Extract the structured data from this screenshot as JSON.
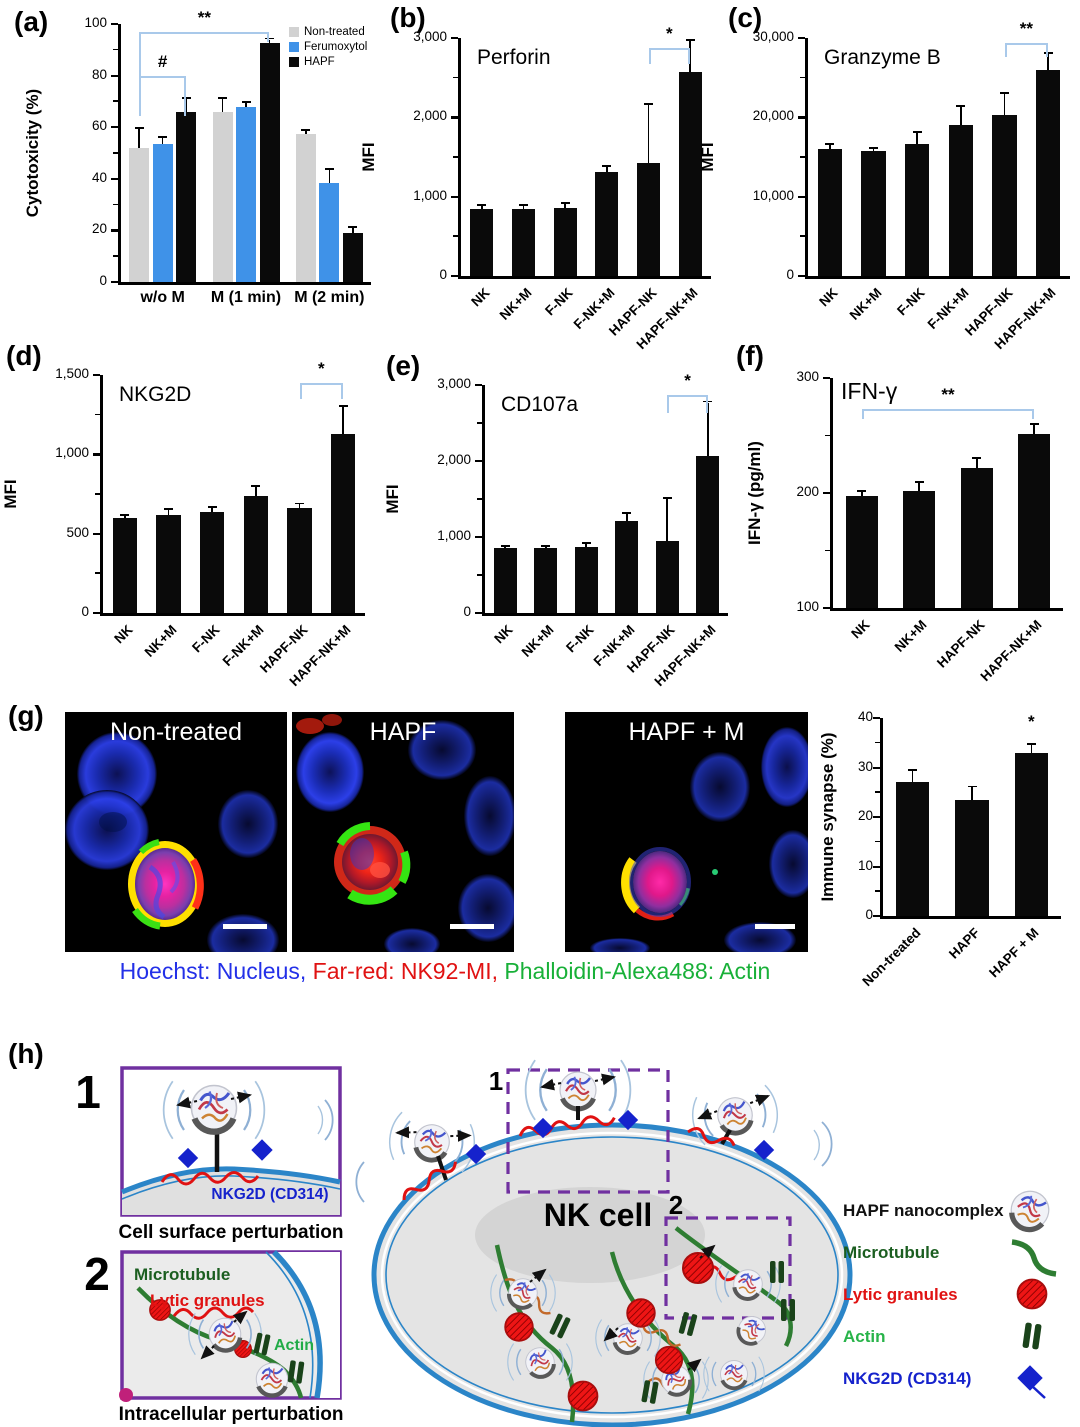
{
  "panels": {
    "a": {
      "label": "(a)"
    },
    "b": {
      "label": "(b)"
    },
    "c": {
      "label": "(c)"
    },
    "d": {
      "label": "(d)"
    },
    "e": {
      "label": "(e)"
    },
    "f": {
      "label": "(f)"
    },
    "g": {
      "label": "(g)",
      "images": [
        {
          "title": "Non-treated"
        },
        {
          "title": "HAPF"
        },
        {
          "title": "HAPF + M"
        }
      ],
      "caption": {
        "part1": "Hoechst: Nucleus,",
        "part2": "Far-red: NK92-MI,",
        "part3": "Phalloidin-Alexa488: Actin"
      }
    },
    "h": {
      "label": "(h)",
      "box1": {
        "number": "1",
        "inner_label": "NKG2D (CD314)",
        "caption": "Cell surface perturbation"
      },
      "box2": {
        "number": "2",
        "microtubule_label": "Microtubule",
        "lytic_label": "Lytic granules",
        "actin_label": "Actin",
        "caption": "Intracellular perturbation"
      },
      "cell": {
        "title": "NK cell",
        "zoom1_label": "1",
        "zoom2_label": "2"
      },
      "legend": [
        {
          "label": "HAPF nanocomplex",
          "color": "#111111",
          "icon": "nanocomplex-icon"
        },
        {
          "label": "Microtubule",
          "color": "#1b5e20",
          "icon": "microtubule-icon"
        },
        {
          "label": "Lytic granules",
          "color": "#e01212",
          "icon": "lytic-granule-icon"
        },
        {
          "label": "Actin",
          "color": "#28b44a",
          "icon": "actin-icon"
        },
        {
          "label": "NKG2D (CD314)",
          "color": "#1522cc",
          "icon": "nkg2d-icon"
        }
      ]
    }
  },
  "chart_data": {
    "a": {
      "type": "bar",
      "title": "",
      "ylabel": "Cytotoxicity (%)",
      "ylim": [
        0,
        100
      ],
      "yticks": [
        {
          "v": 0,
          "t": "0"
        },
        {
          "v": 20,
          "t": "20"
        },
        {
          "v": 40,
          "t": "40"
        },
        {
          "v": 60,
          "t": "60"
        },
        {
          "v": 80,
          "t": "80"
        },
        {
          "v": 100,
          "t": "100"
        }
      ],
      "categories": [
        "w/o M",
        "M (1 min)",
        "M (2 min)"
      ],
      "series": [
        {
          "name": "Non-treated",
          "color": "#d2d2d2",
          "values": [
            52,
            66,
            57.5
          ],
          "errors": [
            7.5,
            5,
            1
          ]
        },
        {
          "name": "Ferumoxytol",
          "color": "#3f92e8",
          "values": [
            53.5,
            68,
            38.5
          ],
          "errors": [
            2.5,
            1.5,
            5
          ]
        },
        {
          "name": "HAPF",
          "color": "#0a0a0a",
          "values": [
            66,
            92.5,
            19
          ],
          "errors": [
            5,
            1.5,
            2
          ]
        }
      ],
      "legend_position": "top-right",
      "sig": [
        {
          "from": 0,
          "to": 2,
          "y": 80,
          "ll": 40,
          "lr": 40,
          "label": "#"
        },
        {
          "from": 0,
          "to": 5,
          "y": 97,
          "ll": 44,
          "lr": 10,
          "label": "**"
        }
      ]
    },
    "b": {
      "type": "bar",
      "title": "Perforin",
      "ylabel": "MFI",
      "ylim": [
        0,
        3000
      ],
      "yticks": [
        {
          "v": 0,
          "t": "0"
        },
        {
          "v": 1000,
          "t": "1,000"
        },
        {
          "v": 2000,
          "t": "2,000"
        },
        {
          "v": 3000,
          "t": "3,000"
        }
      ],
      "categories": [
        "NK",
        "NK+M",
        "F-NK",
        "F-NK+M",
        "HAPF-NK",
        "HAPF-NK+M"
      ],
      "values": [
        850,
        850,
        860,
        1310,
        1430,
        2570
      ],
      "errors": [
        30,
        30,
        50,
        70,
        730,
        390
      ],
      "bar_color": "#0a0a0a",
      "sig": [
        {
          "from": 4,
          "to": 5,
          "y": 2880,
          "ll": 16,
          "lr": 16,
          "label": "*"
        }
      ]
    },
    "c": {
      "type": "bar",
      "title": "Granzyme B",
      "ylabel": "MFI",
      "ylim": [
        0,
        30000
      ],
      "yticks": [
        {
          "v": 0,
          "t": "0"
        },
        {
          "v": 10000,
          "t": "10,000"
        },
        {
          "v": 20000,
          "t": "20,000"
        },
        {
          "v": 30000,
          "t": "30,000"
        }
      ],
      "categories": [
        "NK",
        "NK+M",
        "F-NK",
        "F-NK+M",
        "HAPF-NK",
        "HAPF-NK+M"
      ],
      "values": [
        16000,
        15700,
        16700,
        19000,
        20300,
        26000
      ],
      "errors": [
        500,
        300,
        1300,
        2300,
        2700,
        2000
      ],
      "bar_color": "#0a0a0a",
      "sig": [
        {
          "from": 4,
          "to": 5,
          "y": 29400,
          "ll": 14,
          "lr": 14,
          "label": "**"
        }
      ]
    },
    "d": {
      "type": "bar",
      "title": "NKG2D",
      "ylabel": "MFI",
      "ylim": [
        0,
        1500
      ],
      "yticks": [
        {
          "v": 0,
          "t": "0"
        },
        {
          "v": 500,
          "t": "500"
        },
        {
          "v": 1000,
          "t": "1,000"
        },
        {
          "v": 1500,
          "t": "1,500"
        }
      ],
      "categories": [
        "NK",
        "NK+M",
        "F-NK",
        "F-NK+M",
        "HAPF-NK",
        "HAPF-NK+M"
      ],
      "values": [
        600,
        615,
        635,
        735,
        665,
        1130
      ],
      "errors": [
        10,
        35,
        25,
        60,
        20,
        170
      ],
      "bar_color": "#0a0a0a",
      "sig": [
        {
          "from": 4,
          "to": 5,
          "y": 1450,
          "ll": 16,
          "lr": 16,
          "label": "*"
        }
      ]
    },
    "e": {
      "type": "bar",
      "title": "CD107a",
      "ylabel": "MFI",
      "ylim": [
        0,
        3000
      ],
      "yticks": [
        {
          "v": 0,
          "t": "0"
        },
        {
          "v": 1000,
          "t": "1,000"
        },
        {
          "v": 2000,
          "t": "2,000"
        },
        {
          "v": 3000,
          "t": "3,000"
        }
      ],
      "categories": [
        "NK",
        "NK+M",
        "F-NK",
        "F-NK+M",
        "HAPF-NK",
        "HAPF-NK+M"
      ],
      "values": [
        850,
        850,
        870,
        1210,
        950,
        2070
      ],
      "errors": [
        25,
        25,
        40,
        90,
        550,
        700
      ],
      "bar_color": "#0a0a0a",
      "sig": [
        {
          "from": 4,
          "to": 5,
          "y": 2870,
          "ll": 18,
          "lr": 18,
          "label": "*"
        }
      ]
    },
    "f": {
      "type": "bar",
      "title": "IFN-γ",
      "ylabel": "IFN-γ  (pg/ml)",
      "ylim": [
        100,
        300
      ],
      "yticks": [
        {
          "v": 100,
          "t": "100"
        },
        {
          "v": 200,
          "t": "200"
        },
        {
          "v": 300,
          "t": "300"
        }
      ],
      "categories": [
        "NK",
        "NK+M",
        "HAPF-NK",
        "HAPF-NK+M"
      ],
      "values": [
        197,
        202,
        222,
        251
      ],
      "errors": [
        4,
        7,
        8,
        8
      ],
      "bar_color": "#0a0a0a",
      "sig": [
        {
          "from": 0,
          "to": 3,
          "y": 273,
          "ll": 10,
          "lr": 10,
          "label": "**"
        }
      ]
    },
    "g": {
      "type": "bar",
      "title": "",
      "ylabel": "Immune synapse (%)",
      "ylim": [
        0,
        40
      ],
      "yticks": [
        {
          "v": 0,
          "t": "0"
        },
        {
          "v": 10,
          "t": "10"
        },
        {
          "v": 20,
          "t": "20"
        },
        {
          "v": 30,
          "t": "30"
        },
        {
          "v": 40,
          "t": "40"
        }
      ],
      "categories": [
        "Non-treated",
        "HAPF",
        "HAPF + M"
      ],
      "values": [
        27,
        23.5,
        33
      ],
      "errors": [
        2.3,
        2.5,
        1.5
      ],
      "bar_color": "#0a0a0a",
      "sig": [
        {
          "star": 2,
          "y": 37.5,
          "label": "*"
        }
      ]
    }
  }
}
